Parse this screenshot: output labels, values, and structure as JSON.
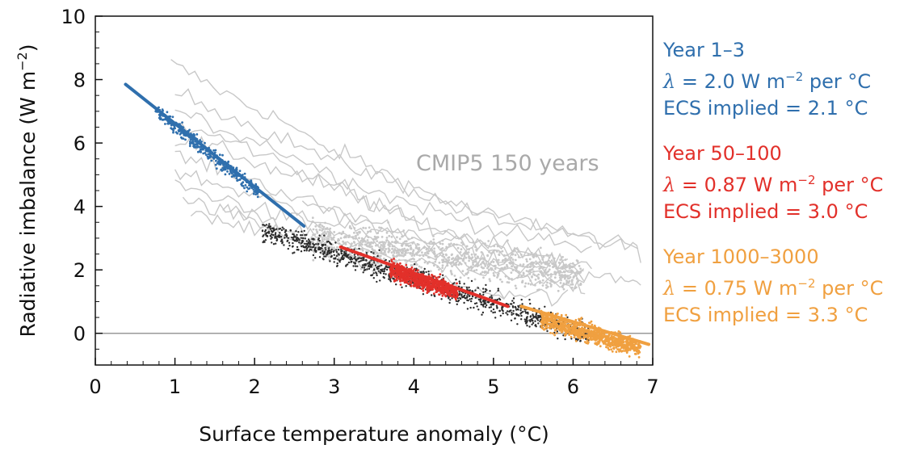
{
  "chart_data": {
    "type": "scatter",
    "title": "",
    "xlabel": "Surface temperature anomaly (°C)",
    "ylabel": "Radiative imbalance (W m⁻²)",
    "xlim": [
      0,
      7
    ],
    "ylim": [
      -1,
      10
    ],
    "xticks": [
      "0",
      "1",
      "2",
      "3",
      "4",
      "5",
      "6",
      "7"
    ],
    "yticks": [
      "0",
      "2",
      "4",
      "6",
      "8",
      "10"
    ],
    "zero_line": 0,
    "annotation": "CMIP5 150 years",
    "series": [
      {
        "name": "Year 1–3",
        "color": "#2f6fad",
        "fit": {
          "x": [
            0.38,
            2.62
          ],
          "y": [
            7.85,
            3.38
          ]
        },
        "cluster": {
          "x_range": [
            0.75,
            2.05
          ],
          "y_center_at_x1": 6.55,
          "slope": -2.0,
          "spread": 0.22
        }
      },
      {
        "name": "Year 50–100",
        "color": "#e2302a",
        "fit": {
          "x": [
            3.08,
            5.18
          ],
          "y": [
            2.72,
            0.85
          ]
        },
        "cluster": {
          "x_range": [
            3.7,
            4.55
          ],
          "y_center_at_x4": 1.75,
          "slope": -0.87,
          "spread": 0.25
        }
      },
      {
        "name": "Year 1000–3000",
        "color": "#f0a040",
        "fit": {
          "x": [
            5.35,
            6.95
          ],
          "y": [
            0.85,
            -0.35
          ]
        },
        "cluster": {
          "x_range": [
            5.6,
            6.85
          ],
          "y_center_at_x6": 0.15,
          "slope": -0.75,
          "spread": 0.28
        }
      },
      {
        "name": "Transition (black dots)",
        "color": "#2b2b2b",
        "cluster": {
          "x_range": [
            2.1,
            6.2
          ],
          "slope": -0.8
        }
      },
      {
        "name": "CMIP5 150 years",
        "color": "#c8c8c8",
        "curves": [
          {
            "x": [
              0.95,
              1.4,
              1.9,
              2.3,
              2.8,
              3.2,
              3.6,
              4.0,
              4.4,
              4.8,
              5.2,
              5.6,
              6.0,
              6.4,
              6.9
            ],
            "y": [
              8.5,
              7.9,
              7.2,
              6.8,
              5.9,
              5.6,
              5.1,
              4.6,
              4.2,
              3.8,
              3.6,
              3.4,
              3.1,
              2.9,
              2.6
            ]
          },
          {
            "x": [
              1.0,
              1.5,
              2.0,
              2.5,
              3.0,
              3.4,
              3.8,
              4.2,
              4.6,
              5.0,
              5.4,
              5.8,
              6.2,
              6.6,
              6.9
            ],
            "y": [
              7.6,
              7.1,
              6.5,
              6.0,
              5.4,
              5.1,
              4.7,
              4.3,
              3.9,
              3.6,
              3.4,
              3.2,
              2.9,
              2.8,
              2.5
            ]
          },
          {
            "x": [
              1.0,
              1.4,
              1.9,
              2.4,
              2.9,
              3.3,
              3.7,
              4.2,
              4.6,
              5.1,
              5.5,
              5.9,
              6.3
            ],
            "y": [
              7.0,
              6.6,
              6.2,
              5.7,
              5.1,
              4.7,
              4.3,
              3.9,
              3.6,
              3.2,
              3.0,
              2.8,
              2.6
            ]
          },
          {
            "x": [
              1.0,
              1.5,
              1.9,
              2.4,
              2.8,
              3.2,
              3.5,
              3.9,
              4.3,
              4.7,
              5.1,
              5.5,
              5.9,
              6.3
            ],
            "y": [
              6.6,
              6.2,
              5.9,
              5.3,
              4.9,
              4.5,
              4.0,
              3.7,
              3.3,
              3.0,
              2.7,
              2.5,
              2.3,
              2.2
            ]
          },
          {
            "x": [
              1.0,
              1.4,
              1.8,
              2.2,
              2.6,
              3.0,
              3.3,
              3.7,
              4.0,
              4.4,
              4.8,
              5.2,
              5.6,
              6.0
            ],
            "y": [
              6.1,
              5.9,
              5.6,
              5.2,
              4.9,
              4.6,
              4.2,
              3.9,
              3.5,
              3.2,
              2.9,
              2.7,
              2.5,
              2.2
            ]
          },
          {
            "x": [
              1.0,
              1.4,
              1.8,
              2.2,
              2.6,
              3.0,
              3.4,
              3.8,
              4.2,
              4.6,
              5.0,
              5.4,
              5.8,
              6.2
            ],
            "y": [
              5.6,
              5.3,
              5.0,
              4.6,
              4.2,
              3.9,
              3.6,
              3.3,
              3.0,
              2.8,
              2.6,
              2.4,
              2.2,
              2.0
            ]
          },
          {
            "x": [
              1.0,
              1.4,
              1.8,
              2.2,
              2.6,
              3.0,
              3.4,
              3.8,
              4.2,
              4.6,
              5.0,
              5.4,
              5.8,
              6.2
            ],
            "y": [
              5.1,
              4.8,
              4.5,
              4.2,
              3.8,
              3.5,
              3.2,
              3.0,
              2.7,
              2.5,
              2.3,
              2.2,
              2.0,
              1.9
            ]
          },
          {
            "x": [
              1.0,
              1.4,
              1.8,
              2.2,
              2.6,
              3.0,
              3.4,
              3.8,
              4.2,
              4.6,
              5.0,
              5.4,
              5.8,
              6.2
            ],
            "y": [
              4.7,
              4.4,
              4.1,
              3.8,
              3.5,
              3.2,
              2.9,
              2.6,
              2.4,
              2.2,
              2.0,
              1.9,
              1.8,
              1.7
            ]
          },
          {
            "x": [
              1.1,
              1.5,
              1.9,
              2.3,
              2.7,
              3.1,
              3.5,
              3.9,
              4.3,
              4.7,
              5.1,
              5.5,
              5.9,
              6.2
            ],
            "y": [
              4.2,
              3.9,
              3.7,
              3.4,
              3.1,
              2.8,
              2.6,
              2.3,
              2.1,
              1.9,
              1.8,
              1.6,
              1.5,
              1.4
            ]
          },
          {
            "x": [
              1.2,
              1.6,
              2.0,
              2.4,
              2.8,
              3.2,
              3.6,
              4.0,
              4.4,
              4.8,
              5.2,
              5.6,
              6.0
            ],
            "y": [
              3.9,
              3.6,
              3.3,
              3.0,
              2.7,
              2.4,
              2.1,
              1.8,
              1.6,
              1.4,
              1.3,
              1.2,
              1.1
            ]
          },
          {
            "x": [
              1.6,
              2.0,
              2.4,
              2.8,
              3.2,
              3.6,
              4.0,
              4.4,
              4.8,
              5.2
            ],
            "y": [
              3.9,
              3.5,
              3.1,
              2.7,
              2.3,
              2.0,
              1.7,
              1.4,
              1.2,
              1.0
            ]
          },
          {
            "x": [
              2.6,
              3.0,
              3.4,
              3.8,
              4.2,
              4.6,
              5.0,
              5.4,
              5.8,
              6.2,
              6.6,
              6.9
            ],
            "y": [
              4.2,
              3.8,
              3.4,
              3.1,
              2.8,
              2.5,
              2.3,
              2.1,
              1.9,
              1.8,
              1.7,
              1.6
            ]
          }
        ]
      }
    ]
  },
  "legend": {
    "blue": {
      "line1": "Year 1–3",
      "sym": "λ",
      "line2": " = 2.0 W m",
      "sup": "−2",
      "line2b": " per °C",
      "line3": "ECS implied = 2.1 °C",
      "color": "#2f6fad"
    },
    "red": {
      "line1": "Year 50–100",
      "sym": "λ",
      "line2": " = 0.87 W m",
      "sup": "−2",
      "line2b": " per °C",
      "line3": "ECS implied = 3.0 °C",
      "color": "#e2302a"
    },
    "orange": {
      "line1": "Year 1000–3000",
      "sym": "λ",
      "line2": " = 0.75 W m",
      "sup": "−2",
      "line2b": " per °C",
      "line3": "ECS implied = 3.3 °C",
      "color": "#f0a040"
    }
  }
}
